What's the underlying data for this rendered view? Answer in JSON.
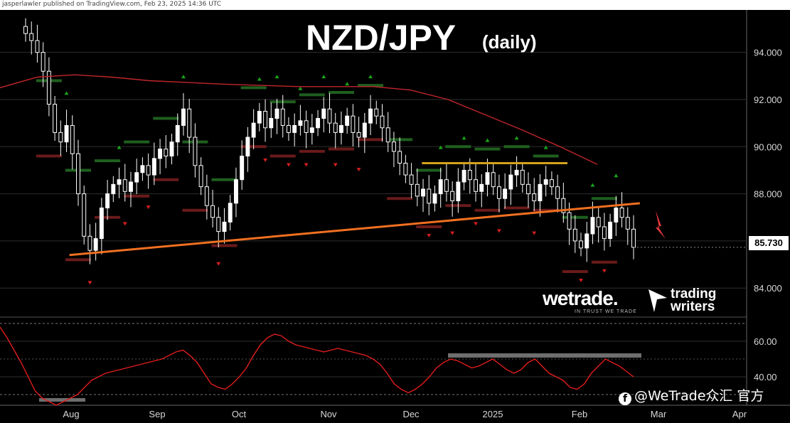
{
  "header": {
    "text": "jasperlawler published on TradingView.com, Feb 23, 2025 14:36 UTC"
  },
  "title": "NZD/JPY",
  "subtitle": "(daily)",
  "last_price": "85.730",
  "colors": {
    "background": "#000000",
    "candle": "#ffffff",
    "ma": "#c0262b",
    "trendline": "#f07020",
    "resistance": "#d6a21c",
    "rsi": "#e21d1d",
    "rsi_range": "#6e6e6e",
    "up_marker": "#19a319",
    "down_marker": "#d21e1e",
    "arrow": "#e83a40"
  },
  "logos": {
    "wetrade": "wetrade.",
    "wetrade_tagline": "IN TRUST WE TRADE",
    "trading_writers_line1": "trading",
    "trading_writers_line2": "writers"
  },
  "watermark": "@WeTrade众汇 官方",
  "chart_data": [
    {
      "type": "candlestick",
      "title": "NZD/JPY",
      "subtitle": "(daily)",
      "x_labels": [
        "Aug",
        "Sep",
        "Oct",
        "Nov",
        "Dec",
        "2025",
        "Feb",
        "Mar",
        "Apr"
      ],
      "y_ticks": [
        "94.000",
        "92.000",
        "90.000",
        "88.000",
        "86.000",
        "84.000"
      ],
      "ylim": [
        82.8,
        95.8
      ],
      "last_price": 85.73,
      "close_series": [
        94.8,
        94.5,
        94.0,
        93.2,
        91.8,
        90.6,
        90.2,
        90.9,
        89.7,
        88.0,
        86.2,
        85.6,
        86.1,
        87.4,
        88.0,
        88.4,
        88.6,
        88.1,
        88.5,
        88.9,
        89.2,
        88.8,
        89.5,
        89.9,
        89.6,
        90.2,
        90.9,
        91.6,
        90.4,
        89.2,
        88.3,
        87.5,
        87.0,
        86.4,
        86.8,
        87.6,
        88.6,
        89.6,
        90.4,
        91.0,
        91.5,
        90.8,
        91.2,
        91.6,
        90.9,
        90.6,
        90.9,
        91.1,
        90.6,
        90.8,
        91.2,
        91.6,
        91.0,
        90.6,
        90.9,
        91.3,
        90.6,
        90.4,
        91.0,
        91.6,
        91.3,
        90.8,
        90.2,
        89.8,
        89.3,
        88.8,
        88.4,
        87.9,
        88.2,
        87.6,
        88.0,
        88.6,
        88.1,
        87.7,
        88.5,
        89.0,
        88.6,
        88.1,
        88.4,
        88.9,
        88.3,
        87.8,
        88.2,
        88.8,
        89.0,
        88.4,
        88.0,
        87.7,
        88.4,
        88.6,
        88.3,
        87.8,
        87.2,
        86.5,
        86.0,
        85.7,
        86.3,
        87.0,
        86.6,
        86.1,
        86.8,
        87.4,
        87.0,
        86.5,
        85.73
      ],
      "moving_average": {
        "name": "",
        "points": [
          [
            0,
            92.5
          ],
          [
            0.05,
            92.95
          ],
          [
            0.1,
            93.05
          ],
          [
            0.15,
            92.95
          ],
          [
            0.2,
            92.8
          ],
          [
            0.3,
            92.65
          ],
          [
            0.4,
            92.55
          ],
          [
            0.5,
            92.55
          ],
          [
            0.55,
            92.4
          ],
          [
            0.6,
            92.0
          ],
          [
            0.65,
            91.35
          ],
          [
            0.7,
            90.7
          ],
          [
            0.75,
            90.0
          ],
          [
            0.8,
            89.25
          ]
        ]
      },
      "trendline": {
        "start": [
          0.093,
          85.4
        ],
        "end": [
          0.857,
          87.6
        ]
      },
      "resistance": {
        "start": [
          0.565,
          89.3
        ],
        "end": [
          0.76,
          89.3
        ],
        "level": 89.3
      }
    },
    {
      "type": "line",
      "name": "",
      "y_ticks": [
        "60.00",
        "40.00"
      ],
      "ylim": [
        26,
        72
      ],
      "range_level": 52,
      "values": [
        68,
        62,
        55,
        48,
        40,
        32,
        28,
        26,
        24,
        26,
        28,
        30,
        34,
        38,
        40,
        42,
        43,
        44,
        45,
        46,
        47,
        48,
        49,
        50,
        52,
        54,
        55,
        52,
        48,
        42,
        36,
        34,
        33,
        36,
        40,
        45,
        52,
        58,
        62,
        64,
        63,
        60,
        58,
        57,
        56,
        55,
        54,
        55,
        56,
        55,
        54,
        53,
        52,
        50,
        47,
        42,
        36,
        33,
        31,
        33,
        36,
        40,
        45,
        48,
        50,
        49,
        47,
        45,
        46,
        48,
        50,
        47,
        44,
        42,
        44,
        48,
        50,
        46,
        42,
        40,
        38,
        34,
        33,
        36,
        42,
        46,
        50,
        48,
        46,
        43,
        40
      ]
    }
  ]
}
